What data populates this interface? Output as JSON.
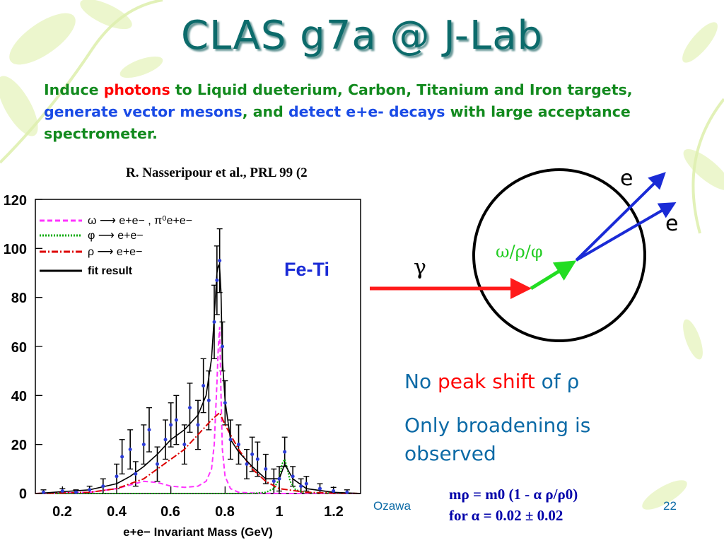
{
  "slide": {
    "title": "CLAS g7a @ J-Lab",
    "intro": {
      "w1": "Induce ",
      "w2": "photons",
      "w3": " to Liquid dueterium, Carbon, Titanium and Iron targets, ",
      "w4": "generate vector mesons",
      "w5": ", and ",
      "w6": "detect e+e- decays",
      "w7": " with large acceptance spectrometer."
    },
    "reference": "R. Nasseripour et al., PRL 99 (2",
    "note1": {
      "a": "No ",
      "b": "peak shift",
      "c": " of ρ"
    },
    "note2": {
      "line1": "Only broadening is",
      "line2": "observed"
    },
    "formula": {
      "line1": "mρ = m0 (1 - α ρ/ρ0)",
      "line2": "for α = 0.02 ± 0.02"
    },
    "footer": {
      "author": "Ozawa",
      "page": "22"
    },
    "diagram": {
      "gamma_label": "γ",
      "meson_label": "ω/ρ/φ",
      "e1_label": "e",
      "e2_label": "e"
    }
  },
  "chart_data": {
    "type": "line",
    "title": "Fe-Ti",
    "xlabel": "e+e− Invariant Mass (GeV)",
    "ylabel": "",
    "xlim": [
      0.1,
      1.3
    ],
    "ylim": [
      0,
      120
    ],
    "x_ticks": [
      "0.2",
      "0.4",
      "0.6",
      "0.8",
      "1",
      "1.2"
    ],
    "y_ticks": [
      "0",
      "20",
      "40",
      "60",
      "80",
      "100",
      "120"
    ],
    "legend": [
      {
        "label": "ω ⟶ e+e− , π⁰e+e−",
        "color": "#ff33ff",
        "style": "dashed"
      },
      {
        "label": "φ ⟶ e+e−",
        "color": "#00aa00",
        "style": "dotted"
      },
      {
        "label": "ρ ⟶ e+e−",
        "color": "#dd0000",
        "style": "dashdot"
      },
      {
        "label": "fit result",
        "color": "#000000",
        "style": "solid"
      }
    ],
    "legend_position": "top-left",
    "series": [
      {
        "name": "ω ⟶ e+e− , π⁰e+e−",
        "color": "#ff33ff",
        "x": [
          0.1,
          0.3,
          0.4,
          0.45,
          0.5,
          0.55,
          0.6,
          0.65,
          0.7,
          0.73,
          0.75,
          0.76,
          0.77,
          0.775,
          0.78,
          0.785,
          0.79,
          0.8,
          0.82,
          0.85,
          0.9,
          0.95,
          1.0,
          1.05,
          1.1,
          1.2,
          1.3
        ],
        "y": [
          0,
          0.5,
          2,
          3.5,
          5,
          4.5,
          3,
          2.5,
          3,
          5,
          10,
          20,
          45,
          60,
          68,
          40,
          18,
          7,
          2,
          0.5,
          0.2,
          0.1,
          0,
          0,
          0,
          0,
          0
        ]
      },
      {
        "name": "φ ⟶ e+e−",
        "color": "#00aa00",
        "x": [
          0.1,
          0.9,
          0.95,
          0.98,
          1.0,
          1.01,
          1.02,
          1.03,
          1.04,
          1.06,
          1.1,
          1.3
        ],
        "y": [
          0,
          0,
          0.5,
          2,
          6,
          12,
          14,
          10,
          5,
          1.5,
          0.3,
          0
        ]
      },
      {
        "name": "ρ ⟶ e+e−",
        "color": "#dd0000",
        "x": [
          0.1,
          0.3,
          0.4,
          0.5,
          0.6,
          0.65,
          0.7,
          0.75,
          0.78,
          0.8,
          0.85,
          0.9,
          0.95,
          1.0,
          1.1,
          1.2,
          1.3
        ],
        "y": [
          0,
          0.5,
          2,
          6,
          14,
          18,
          24,
          30,
          33,
          28,
          18,
          10,
          5,
          2,
          0.5,
          0.2,
          0
        ]
      },
      {
        "name": "fit result",
        "color": "#000000",
        "x": [
          0.1,
          0.3,
          0.4,
          0.45,
          0.5,
          0.55,
          0.6,
          0.65,
          0.7,
          0.73,
          0.75,
          0.76,
          0.77,
          0.775,
          0.78,
          0.785,
          0.79,
          0.8,
          0.82,
          0.85,
          0.9,
          0.95,
          1.0,
          1.02,
          1.05,
          1.1,
          1.2,
          1.3
        ],
        "y": [
          0,
          1.5,
          4,
          7,
          11,
          16,
          22,
          26,
          32,
          40,
          55,
          72,
          90,
          93,
          92,
          82,
          55,
          38,
          22,
          17,
          11,
          6,
          6,
          12,
          6,
          2,
          0.5,
          0
        ]
      }
    ],
    "data_points": {
      "x": [
        0.13,
        0.2,
        0.25,
        0.3,
        0.35,
        0.4,
        0.42,
        0.45,
        0.47,
        0.5,
        0.52,
        0.55,
        0.58,
        0.6,
        0.62,
        0.65,
        0.67,
        0.7,
        0.72,
        0.74,
        0.76,
        0.77,
        0.78,
        0.79,
        0.8,
        0.82,
        0.85,
        0.88,
        0.9,
        0.92,
        0.95,
        0.98,
        1.0,
        1.02,
        1.05,
        1.08,
        1.1,
        1.15,
        1.2,
        1.25
      ],
      "y": [
        0.5,
        1,
        0.5,
        1.5,
        3,
        7,
        15,
        18,
        8,
        20,
        26,
        12,
        22,
        28,
        30,
        20,
        35,
        28,
        44,
        38,
        70,
        87,
        95,
        60,
        37,
        22,
        20,
        12,
        16,
        14,
        10,
        5,
        6,
        17,
        7,
        3,
        4,
        2,
        1,
        0.5
      ],
      "err": [
        1,
        1,
        1,
        1.5,
        3,
        5,
        7,
        8,
        5,
        8,
        9,
        7,
        8,
        9,
        10,
        8,
        10,
        10,
        11,
        12,
        15,
        14,
        13,
        10,
        9,
        8,
        8,
        6,
        7,
        7,
        6,
        5,
        5,
        6,
        4,
        3,
        3,
        2,
        1.5,
        1
      ]
    }
  }
}
